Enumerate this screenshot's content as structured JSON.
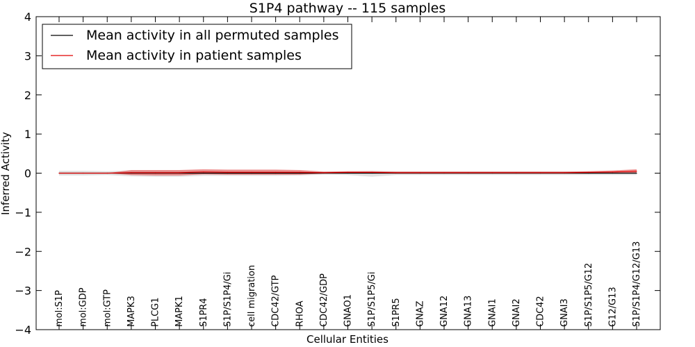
{
  "chart_data": {
    "type": "line",
    "title": "S1P4 pathway -- 115 samples",
    "xlabel": "Cellular Entities",
    "ylabel": "Inferred Activity",
    "ylim": [
      -4,
      4
    ],
    "yticks": [
      -4,
      -3,
      -2,
      -1,
      0,
      1,
      2,
      3,
      4
    ],
    "ytick_labels": [
      "−4",
      "−3",
      "−2",
      "−1",
      "0",
      "1",
      "2",
      "3",
      "4"
    ],
    "legend_position": "upper-left",
    "categories": [
      "mol:S1P",
      "mol:GDP",
      "mol:GTP",
      "MAPK3",
      "PLCG1",
      "MAPK1",
      "S1PR4",
      "S1P/S1P4/Gi",
      "cell migration",
      "CDC42/GTP",
      "RHOA",
      "CDC42/GDP",
      "GNAO1",
      "S1P/S1P5/Gi",
      "S1PR5",
      "GNAZ",
      "GNA12",
      "GNA13",
      "GNAI1",
      "GNAI2",
      "CDC42",
      "GNAI3",
      "S1P/S1P5/G12",
      "G12/G13",
      "S1P/S1P4/G12/G13"
    ],
    "series": [
      {
        "name": "Mean activity in all permuted samples",
        "color": "#000000",
        "band_color": "#c8c8c8",
        "values": [
          0,
          0,
          0,
          0,
          0,
          0,
          0,
          0,
          0,
          0,
          0,
          0,
          0,
          0,
          0,
          0,
          0,
          0,
          0,
          0,
          0,
          0,
          0,
          0,
          0
        ],
        "band_lower": [
          -0.06,
          -0.06,
          -0.05,
          -0.08,
          -0.09,
          -0.09,
          -0.07,
          -0.07,
          -0.07,
          -0.07,
          -0.06,
          -0.04,
          -0.05,
          -0.09,
          -0.05,
          -0.05,
          -0.05,
          -0.05,
          -0.05,
          -0.05,
          -0.05,
          -0.05,
          -0.05,
          -0.05,
          -0.05
        ],
        "band_upper": [
          0.06,
          0.06,
          0.05,
          0.07,
          0.07,
          0.07,
          0.07,
          0.07,
          0.07,
          0.07,
          0.06,
          0.04,
          0.05,
          0.06,
          0.05,
          0.05,
          0.05,
          0.05,
          0.05,
          0.05,
          0.05,
          0.05,
          0.05,
          0.05,
          0.05
        ]
      },
      {
        "name": "Mean activity in patient samples",
        "color": "#e00000",
        "band_color": "#e03030",
        "values": [
          0,
          0,
          0,
          0.01,
          0.01,
          0.01,
          0.03,
          0.02,
          0.02,
          0.02,
          0.02,
          0.01,
          0.02,
          0.02,
          0.01,
          0.01,
          0.01,
          0.01,
          0.01,
          0.01,
          0.01,
          0.01,
          0.02,
          0.03,
          0.05
        ],
        "band_lower": [
          0,
          0,
          0,
          -0.05,
          -0.06,
          -0.06,
          -0.03,
          -0.04,
          -0.04,
          -0.04,
          -0.04,
          -0.01,
          0,
          0,
          -0.01,
          -0.01,
          -0.01,
          -0.01,
          -0.01,
          -0.01,
          -0.01,
          -0.01,
          -0.01,
          0.0,
          0.0
        ],
        "band_upper": [
          0,
          0,
          0,
          0.08,
          0.08,
          0.08,
          0.1,
          0.09,
          0.09,
          0.09,
          0.08,
          0.04,
          0.05,
          0.05,
          0.04,
          0.04,
          0.04,
          0.04,
          0.04,
          0.04,
          0.04,
          0.04,
          0.05,
          0.07,
          0.1
        ]
      }
    ]
  }
}
